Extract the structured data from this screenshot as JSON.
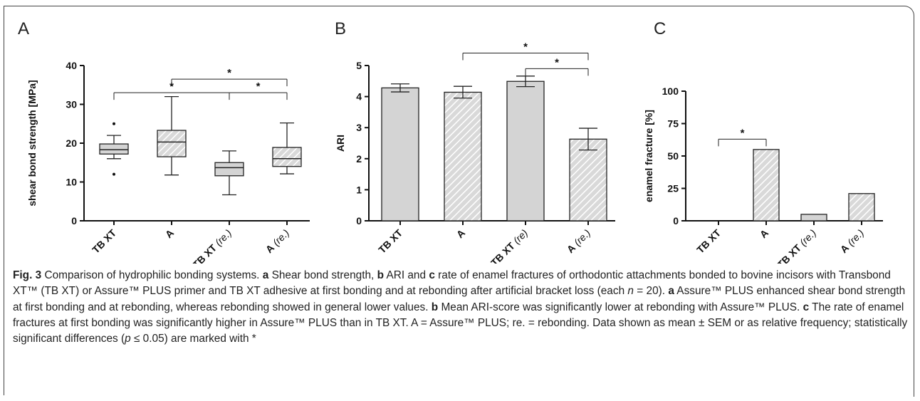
{
  "chart_data": [
    {
      "panel": "A",
      "type": "box",
      "ylabel": "shear bond strength [MPa]",
      "ylim": [
        0,
        40
      ],
      "yticks": [
        0,
        10,
        20,
        30,
        40
      ],
      "categories": [
        {
          "main": "TB XT",
          "suffix": ""
        },
        {
          "main": "A",
          "suffix": ""
        },
        {
          "main": "TB XT",
          "suffix": "(re.)"
        },
        {
          "main": "A",
          "suffix": "(re.)"
        }
      ],
      "boxes": [
        {
          "whisker_low": 16,
          "q1": 17.2,
          "median": 18.3,
          "q3": 19.8,
          "whisker_high": 22,
          "hatched": false,
          "outliers": [
            25,
            12
          ]
        },
        {
          "whisker_low": 11.8,
          "q1": 16.5,
          "median": 20.3,
          "q3": 23.3,
          "whisker_high": 32,
          "hatched": true,
          "outliers": []
        },
        {
          "whisker_low": 6.7,
          "q1": 11.6,
          "median": 13.7,
          "q3": 15,
          "whisker_high": 18,
          "hatched": false,
          "outliers": []
        },
        {
          "whisker_low": 12.1,
          "q1": 14,
          "median": 16,
          "q3": 18.9,
          "whisker_high": 25.2,
          "hatched": true,
          "outliers": []
        }
      ],
      "significance": [
        {
          "from": 1,
          "to": 3,
          "y": 36.5,
          "label": "*"
        },
        {
          "from": 0,
          "to": 3,
          "y": 33,
          "label": "*",
          "mid_tick": 2
        }
      ]
    },
    {
      "panel": "B",
      "type": "bar",
      "ylabel": "ARI",
      "ylim": [
        0,
        5
      ],
      "yticks": [
        0,
        1,
        2,
        3,
        4,
        5
      ],
      "categories": [
        {
          "main": "TB XT",
          "suffix": ""
        },
        {
          "main": "A",
          "suffix": ""
        },
        {
          "main": "TB XT",
          "suffix": "(re)"
        },
        {
          "main": "A",
          "suffix": "(re.)"
        }
      ],
      "values": [
        4.28,
        4.14,
        4.49,
        2.63
      ],
      "errors": [
        0.13,
        0.19,
        0.17,
        0.35
      ],
      "hatched": [
        false,
        true,
        false,
        true
      ],
      "significance": [
        {
          "from": 1,
          "to": 3,
          "y": 5.4,
          "label": "*"
        },
        {
          "from": 2,
          "to": 3,
          "y": 4.9,
          "label": "*"
        }
      ]
    },
    {
      "panel": "C",
      "type": "bar",
      "ylabel": "enamel fracture [%]",
      "ylim": [
        0,
        100
      ],
      "yticks": [
        0,
        25,
        50,
        75,
        100
      ],
      "categories": [
        {
          "main": "TB XT",
          "suffix": ""
        },
        {
          "main": "A",
          "suffix": ""
        },
        {
          "main": "TB XT",
          "suffix": "(re.)"
        },
        {
          "main": "A",
          "suffix": "(re.)"
        }
      ],
      "values": [
        0,
        55,
        5,
        21
      ],
      "hatched": [
        false,
        true,
        false,
        true
      ],
      "significance": [
        {
          "from": 0,
          "to": 1,
          "y": 63,
          "label": "*"
        }
      ]
    }
  ],
  "caption": {
    "fig_label": "Fig. 3",
    "parts": [
      {
        "t": " Comparison of hydrophilic bonding systems. "
      },
      {
        "b": "a"
      },
      {
        "t": " Shear bond strength, "
      },
      {
        "b": "b"
      },
      {
        "t": " ARI and "
      },
      {
        "b": "c"
      },
      {
        "t": " rate of enamel fractures of orthodontic attachments bonded to bovine incisors with Transbond XT™ (TB XT) or Assure™ PLUS primer and TB XT adhesive at first bonding and at rebonding after artificial bracket loss (each "
      },
      {
        "i": "n"
      },
      {
        "t": " = 20). "
      },
      {
        "b": "a"
      },
      {
        "t": " Assure™ PLUS enhanced shear bond strength at first bonding and at rebonding, whereas rebonding showed in general lower values. "
      },
      {
        "b": "b"
      },
      {
        "t": " Mean ARI-score was significantly lower at rebonding with Assure™ PLUS. "
      },
      {
        "b": "c"
      },
      {
        "t": " The rate of enamel fractures at first bonding was significantly higher in Assure™ PLUS than in TB XT. A = Assure™ PLUS; re. = rebonding. Data shown as mean ± SEM or as relative frequency; statistically significant differences ("
      },
      {
        "i": "p"
      },
      {
        "t": " ≤ 0.05) are marked with *"
      }
    ]
  }
}
